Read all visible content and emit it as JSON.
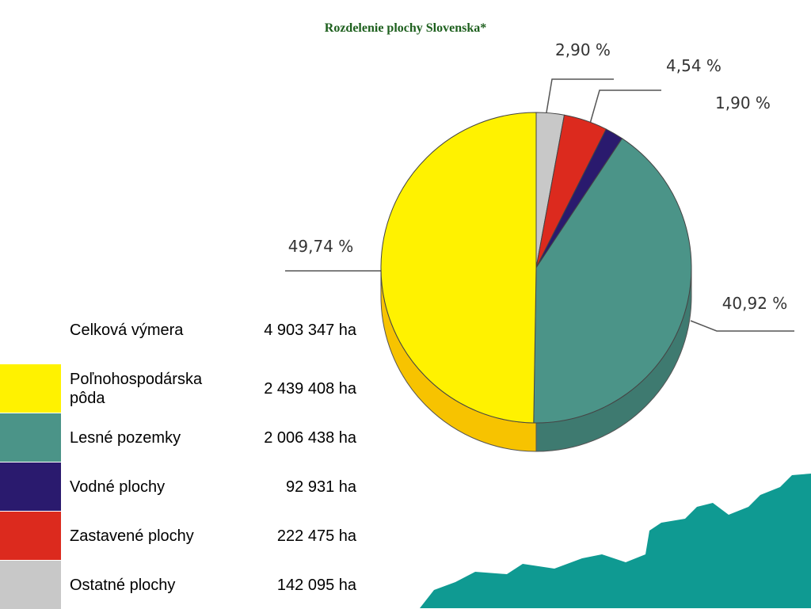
{
  "chart_data": {
    "type": "pie",
    "title": "Rozdelenie plochy Slovenska*",
    "values": [
      2.9,
      4.54,
      1.9,
      40.92,
      49.74
    ],
    "value_labels": [
      "2,90 %",
      "4,54 %",
      "1,90 %",
      "40,92 %",
      "49,74 %"
    ],
    "colors": [
      "#c8c8c8",
      "#dc2a1e",
      "#2a1a6e",
      "#4b9488",
      "#fff200"
    ]
  },
  "table": {
    "rows": [
      [
        "Celková výmera",
        "4 903 347 ha"
      ],
      [
        "Poľnohospodárska pôda",
        "2 439 408 ha"
      ],
      [
        "Lesné pozemky",
        "2 006 438 ha"
      ],
      [
        "Vodné plochy",
        "92 931 ha"
      ],
      [
        "Zastavené plochy",
        "222 475 ha"
      ],
      [
        "Ostatné plochy",
        "142 095 ha"
      ]
    ]
  }
}
